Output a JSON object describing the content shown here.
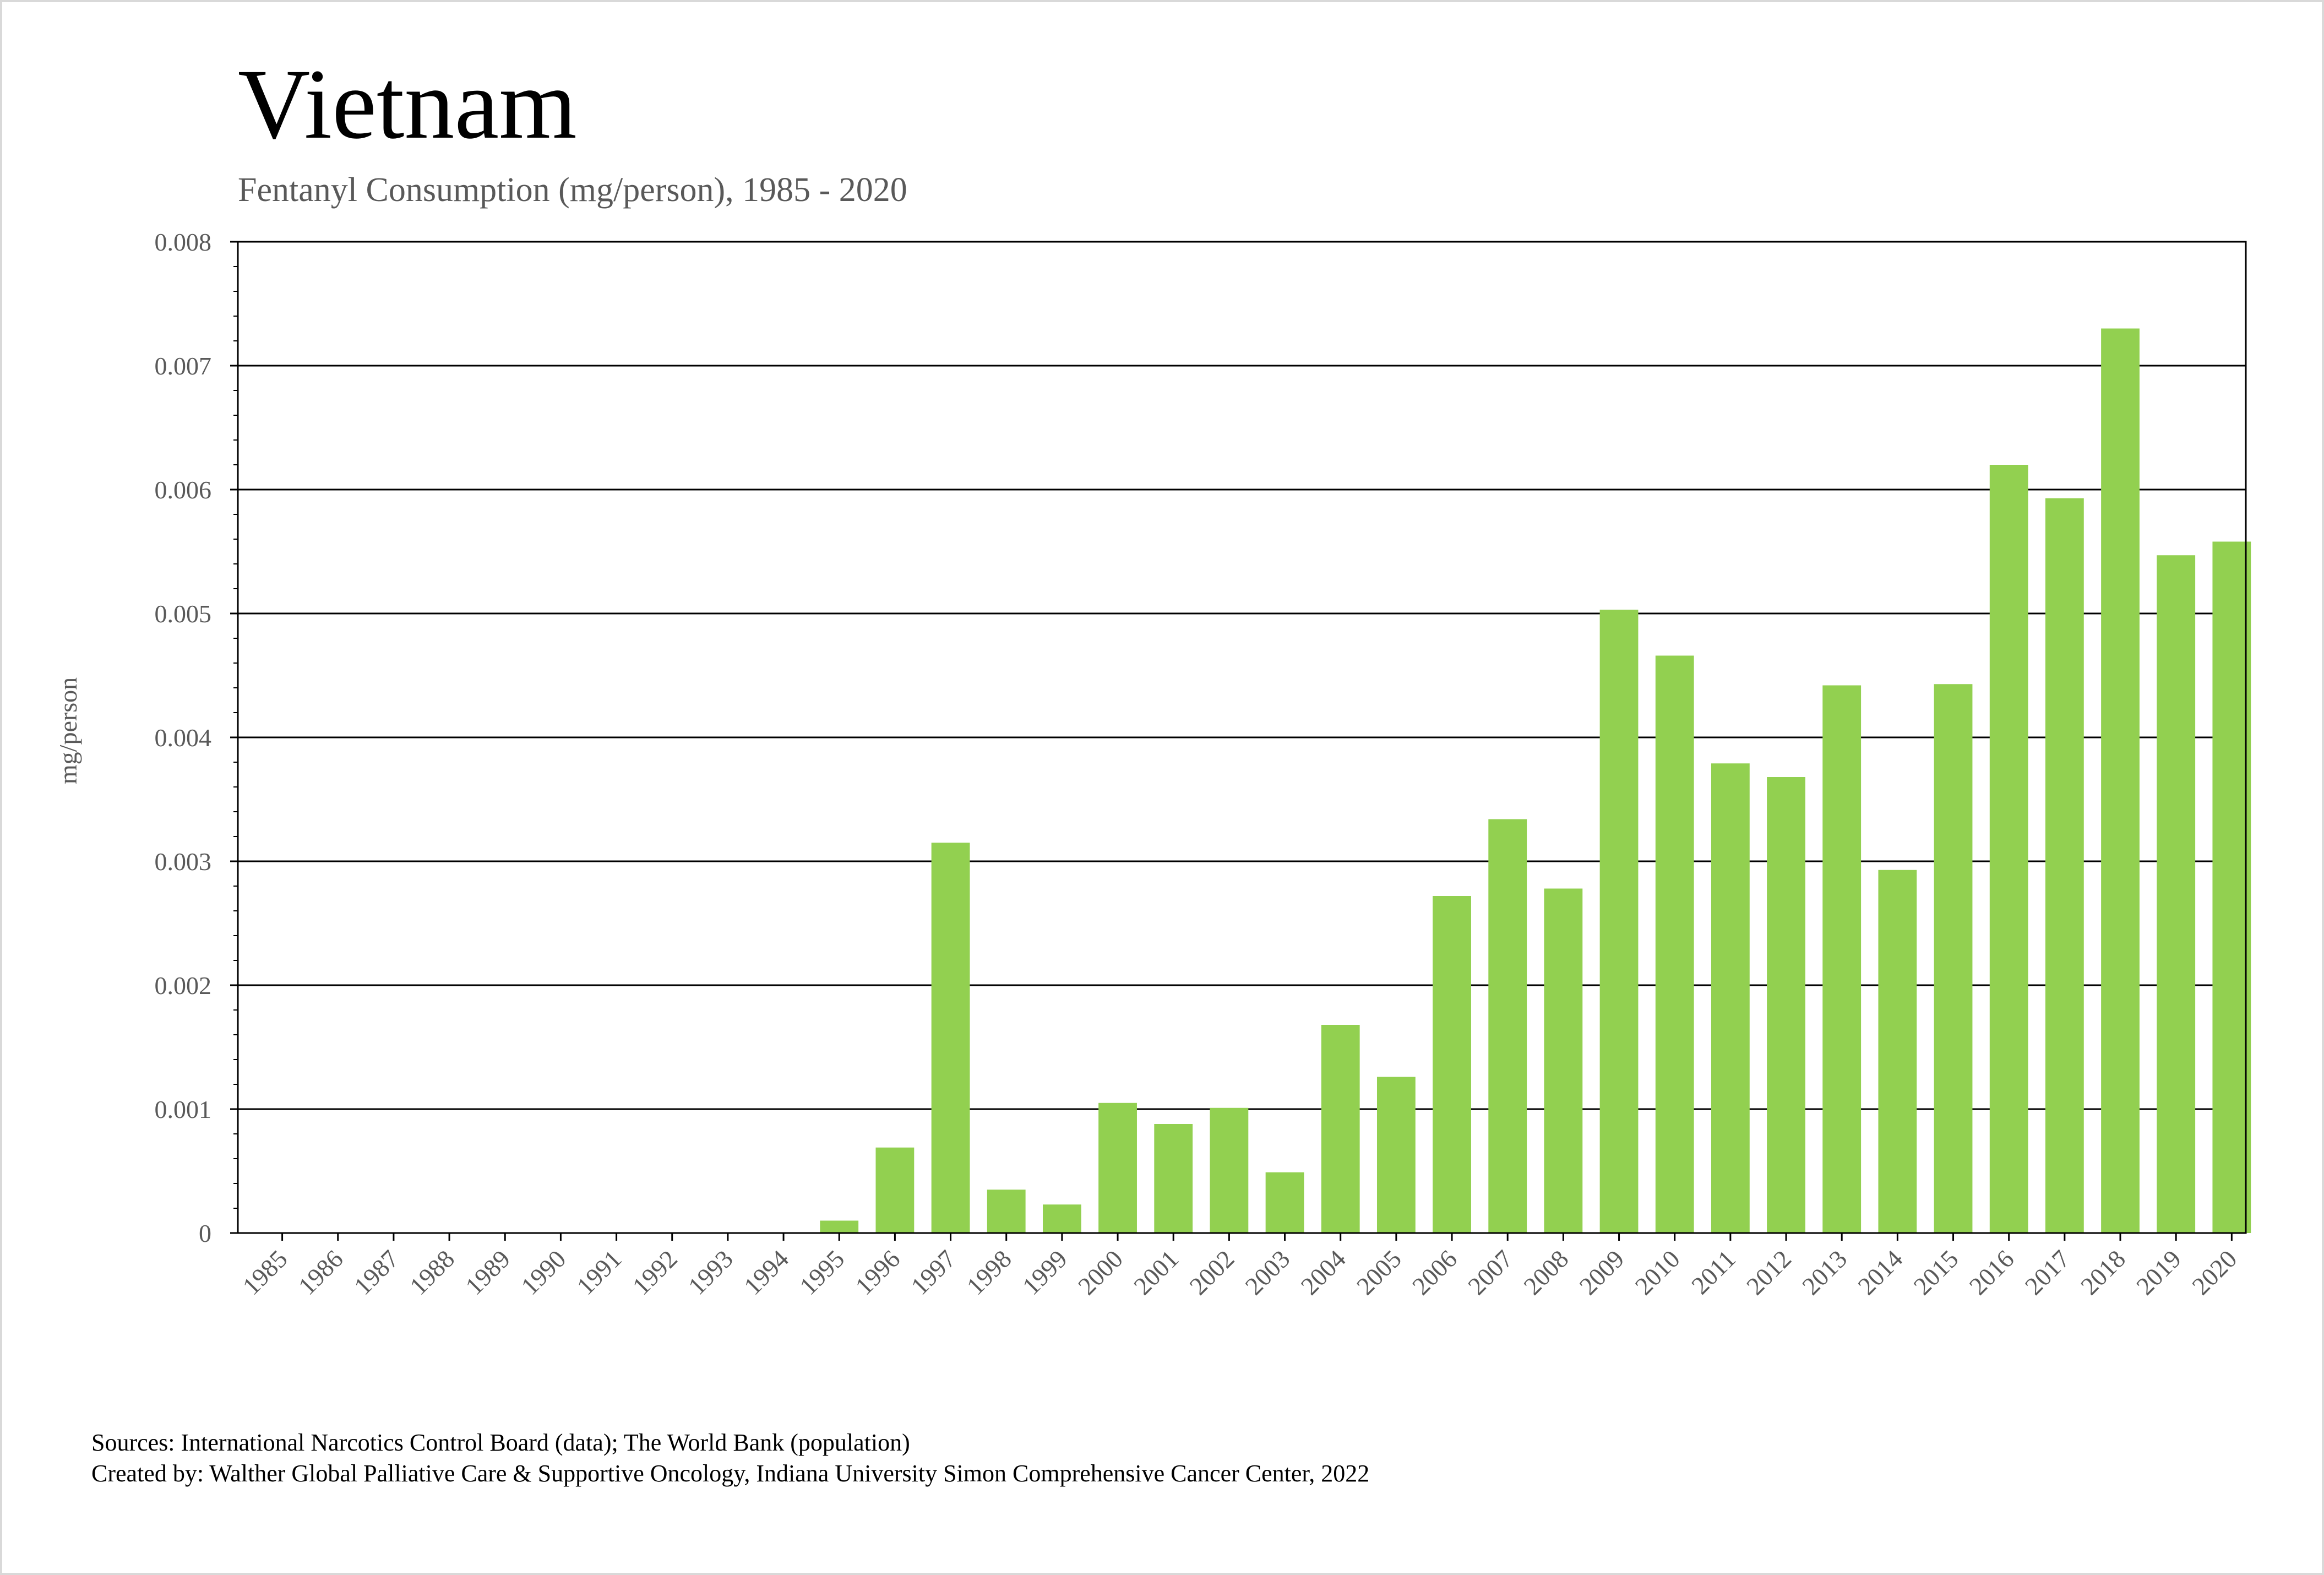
{
  "chart_data": {
    "type": "bar",
    "title": "Vietnam",
    "subtitle": "Fentanyl Consumption (mg/person), 1985 - 2020",
    "xlabel": "",
    "ylabel": "mg/person",
    "ylim": [
      0,
      0.008
    ],
    "yticks": [
      "0",
      "0.001",
      "0.002",
      "0.003",
      "0.004",
      "0.005",
      "0.006",
      "0.007",
      "0.008"
    ],
    "grid": true,
    "bar_color": "#92d050",
    "categories": [
      "1985",
      "1986",
      "1987",
      "1988",
      "1989",
      "1990",
      "1991",
      "1992",
      "1993",
      "1994",
      "1995",
      "1996",
      "1997",
      "1998",
      "1999",
      "2000",
      "2001",
      "2002",
      "2003",
      "2004",
      "2005",
      "2006",
      "2007",
      "2008",
      "2009",
      "2010",
      "2011",
      "2012",
      "2013",
      "2014",
      "2015",
      "2016",
      "2017",
      "2018",
      "2019",
      "2020"
    ],
    "values": [
      0,
      0,
      0,
      0,
      0,
      0,
      0,
      0,
      0,
      0,
      0.0001,
      0.00069,
      0.00315,
      0.00035,
      0.00023,
      0.00105,
      0.00088,
      0.00101,
      0.00049,
      0.00168,
      0.00126,
      0.00272,
      0.00334,
      0.00278,
      0.00503,
      0.00466,
      0.00379,
      0.00368,
      0.00442,
      0.00293,
      0.00443,
      0.0062,
      0.00593,
      0.0073,
      0.00547,
      0.00558
    ]
  },
  "sources": {
    "line1": "Sources: International Narcotics Control Board (data); The World Bank (population)",
    "line2": "Created by: Walther Global Palliative Care & Supportive Oncology, Indiana University Simon Comprehensive Cancer Center, 2022"
  }
}
